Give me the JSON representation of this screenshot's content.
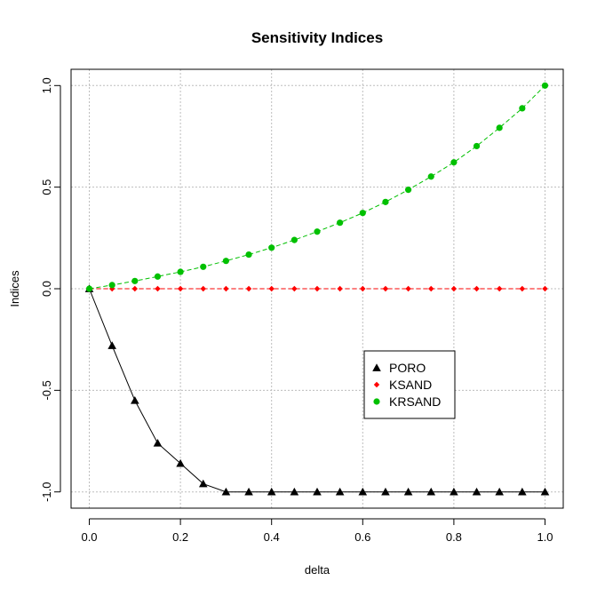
{
  "chart_data": {
    "type": "line",
    "title": "Sensitivity Indices",
    "xlabel": "delta",
    "ylabel": "Indices",
    "xlim": [
      -0.04,
      1.04
    ],
    "ylim": [
      -1.08,
      1.08
    ],
    "x_ticks": [
      0.0,
      0.2,
      0.4,
      0.6,
      0.8,
      1.0
    ],
    "x_tick_labels": [
      "0.0",
      "0.2",
      "0.4",
      "0.6",
      "0.8",
      "1.0"
    ],
    "y_ticks": [
      -1.0,
      -0.5,
      0.0,
      0.5,
      1.0
    ],
    "y_tick_labels": [
      "-1.0",
      "-0.5",
      "0.0",
      "0.5",
      "1.0"
    ],
    "grid": true,
    "legend_position": "center-right",
    "x": [
      0.0,
      0.05,
      0.1,
      0.15,
      0.2,
      0.25,
      0.3,
      0.35,
      0.4,
      0.45,
      0.5,
      0.55,
      0.6,
      0.65,
      0.7,
      0.75,
      0.8,
      0.85,
      0.9,
      0.95,
      1.0
    ],
    "series": [
      {
        "name": "PORO",
        "marker": "triangle",
        "color": "#000000",
        "line_style": "solid",
        "values": [
          0.0,
          -0.28,
          -0.55,
          -0.76,
          -0.86,
          -0.96,
          -1.0,
          -1.0,
          -1.0,
          -1.0,
          -1.0,
          -1.0,
          -1.0,
          -1.0,
          -1.0,
          -1.0,
          -1.0,
          -1.0,
          -1.0,
          -1.0,
          -1.0
        ]
      },
      {
        "name": "KSAND",
        "marker": "diamond",
        "color": "#ff0000",
        "line_style": "dashed",
        "values": [
          0.0,
          0.0,
          0.0,
          0.0,
          0.0,
          0.0,
          0.0,
          0.0,
          0.0,
          0.0,
          0.0,
          0.0,
          0.0,
          0.0,
          0.0,
          0.0,
          0.0,
          0.0,
          0.0,
          0.0,
          0.0
        ]
      },
      {
        "name": "KRSAND",
        "marker": "circle",
        "color": "#00c000",
        "line_style": "dashed",
        "values": [
          0.0,
          0.018,
          0.038,
          0.06,
          0.083,
          0.108,
          0.137,
          0.168,
          0.202,
          0.24,
          0.281,
          0.325,
          0.373,
          0.427,
          0.487,
          0.552,
          0.622,
          0.702,
          0.792,
          0.888,
          1.0
        ]
      }
    ]
  }
}
